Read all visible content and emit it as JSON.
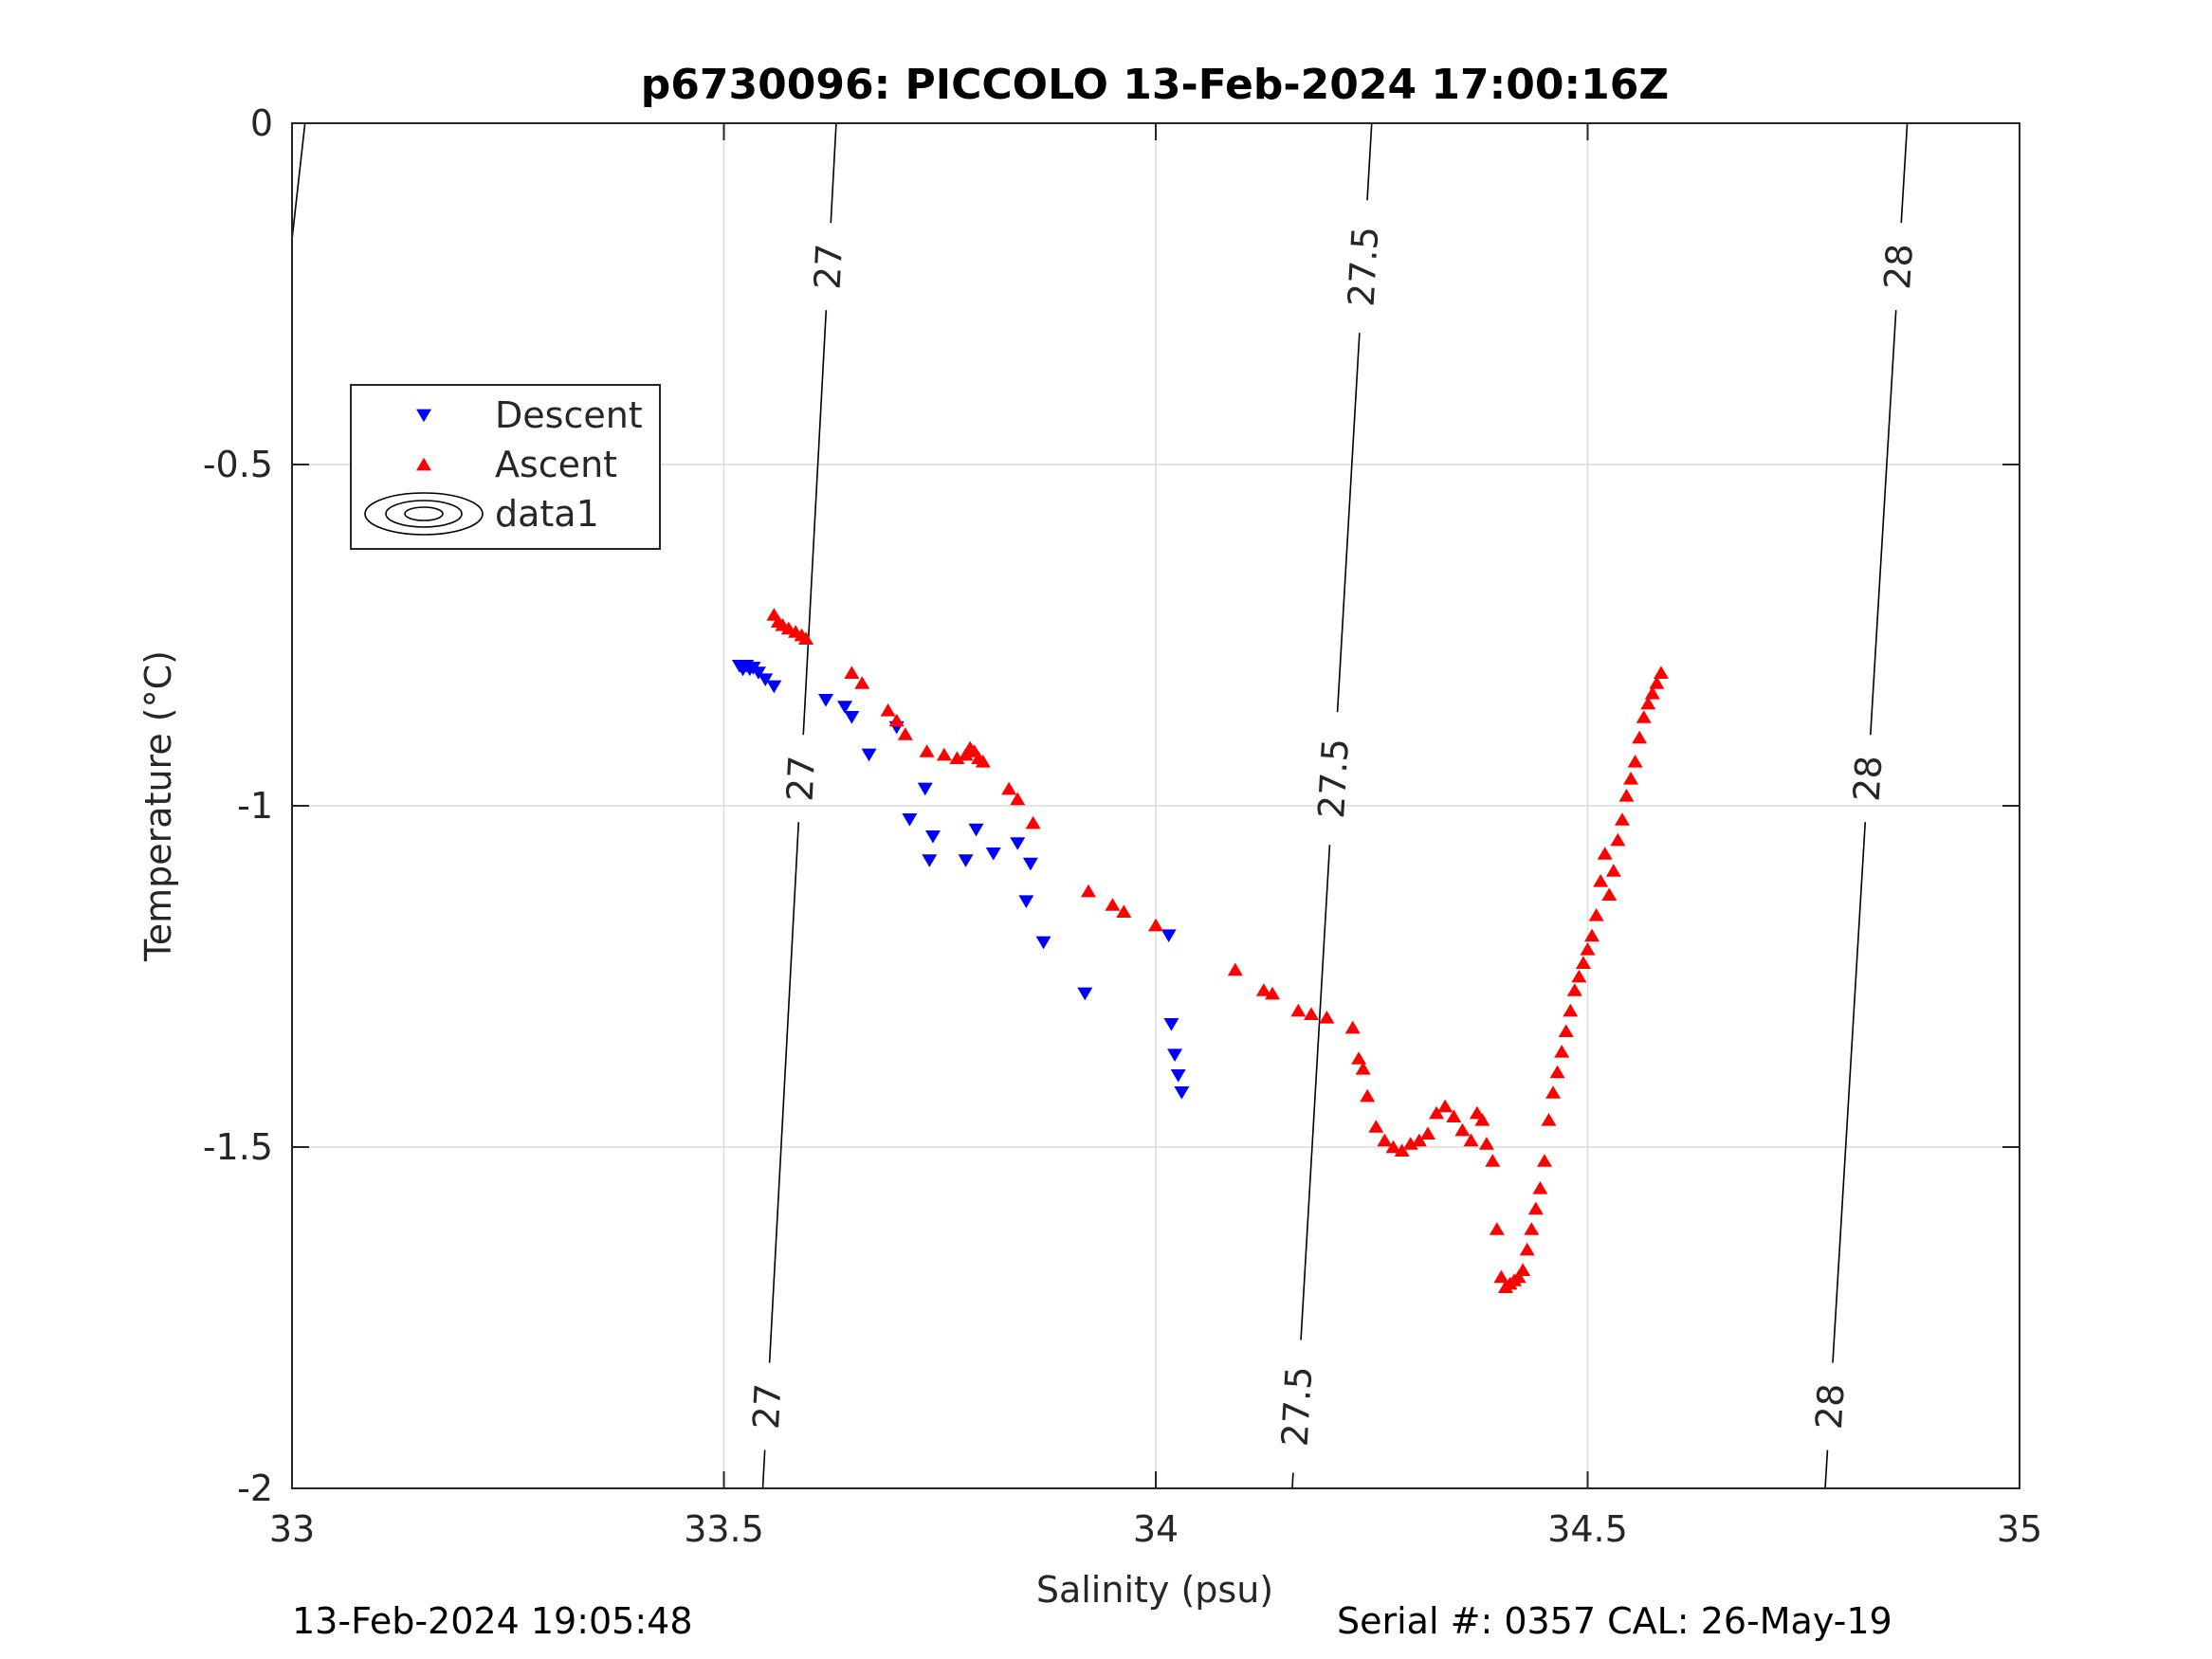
{
  "chart_data": {
    "type": "scatter",
    "title": "p6730096: PICCOLO 13-Feb-2024 17:00:16Z",
    "xlabel": "Salinity (psu)",
    "ylabel": "Temperature (°C)",
    "xlim": [
      33,
      35
    ],
    "ylim": [
      -2,
      0
    ],
    "xticks": [
      "33",
      "33.5",
      "34",
      "34.5",
      "35"
    ],
    "yticks": [
      "0",
      "-0.5",
      "-1",
      "-1.5",
      "-2"
    ],
    "grid": true,
    "legend_position": "upper-left",
    "legend": [
      {
        "label": "Descent",
        "marker": "triangle-down",
        "color": "#0000ff"
      },
      {
        "label": "Ascent",
        "marker": "triangle-up",
        "color": "#ff0000"
      },
      {
        "label": "data1",
        "marker": "contour",
        "color": "#000000"
      }
    ],
    "series": [
      {
        "name": "Descent",
        "color": "#0000ff",
        "marker": "triangle-down",
        "x": [
          33.518,
          33.522,
          33.526,
          33.53,
          33.534,
          33.54,
          33.548,
          33.558,
          33.618,
          33.64,
          33.648,
          33.668,
          33.7,
          33.733,
          33.742,
          33.738,
          33.715,
          33.78,
          33.792,
          33.812,
          33.84,
          33.855,
          33.85,
          33.87,
          33.918,
          34.015,
          34.018,
          34.022,
          34.026,
          34.03
        ],
        "y": [
          -0.795,
          -0.8,
          -0.795,
          -0.8,
          -0.798,
          -0.805,
          -0.815,
          -0.825,
          -0.845,
          -0.855,
          -0.87,
          -0.925,
          -0.885,
          -0.975,
          -1.045,
          -1.08,
          -1.02,
          -1.08,
          -1.035,
          -1.07,
          -1.055,
          -1.085,
          -1.14,
          -1.2,
          -1.275,
          -1.19,
          -1.32,
          -1.365,
          -1.395,
          -1.42
        ]
      },
      {
        "name": "Ascent",
        "color": "#ff0000",
        "marker": "triangle-up",
        "x": [
          33.558,
          33.563,
          33.568,
          33.575,
          33.583,
          33.59,
          33.595,
          33.648,
          33.66,
          33.69,
          33.7,
          33.71,
          33.735,
          33.755,
          33.77,
          33.78,
          33.785,
          33.79,
          33.795,
          33.8,
          33.83,
          33.84,
          33.858,
          33.922,
          33.95,
          33.963,
          34.0,
          34.092,
          34.125,
          34.135,
          34.165,
          34.18,
          34.198,
          34.228,
          34.235,
          34.24,
          34.245,
          34.255,
          34.265,
          34.275,
          34.285,
          34.295,
          34.305,
          34.315,
          34.325,
          34.335,
          34.345,
          34.355,
          34.365,
          34.372,
          34.378,
          34.383,
          34.39,
          34.395,
          34.4,
          34.405,
          34.41,
          34.415,
          34.42,
          34.425,
          34.43,
          34.435,
          34.44,
          34.445,
          34.45,
          34.455,
          34.46,
          34.465,
          34.47,
          34.475,
          34.48,
          34.485,
          34.49,
          34.495,
          34.5,
          34.505,
          34.51,
          34.515,
          34.52,
          34.525,
          34.53,
          34.535,
          34.54,
          34.545,
          34.55,
          34.555,
          34.56,
          34.565,
          34.57,
          34.575,
          34.58,
          34.585
        ],
        "y": [
          -0.72,
          -0.73,
          -0.735,
          -0.74,
          -0.745,
          -0.75,
          -0.755,
          -0.805,
          -0.82,
          -0.86,
          -0.875,
          -0.895,
          -0.92,
          -0.925,
          -0.93,
          -0.925,
          -0.915,
          -0.92,
          -0.93,
          -0.935,
          -0.975,
          -0.99,
          -1.025,
          -1.125,
          -1.145,
          -1.155,
          -1.175,
          -1.24,
          -1.27,
          -1.275,
          -1.3,
          -1.305,
          -1.31,
          -1.325,
          -1.37,
          -1.385,
          -1.425,
          -1.47,
          -1.49,
          -1.5,
          -1.505,
          -1.495,
          -1.49,
          -1.48,
          -1.45,
          -1.44,
          -1.455,
          -1.475,
          -1.49,
          -1.45,
          -1.46,
          -1.495,
          -1.52,
          -1.62,
          -1.69,
          -1.705,
          -1.7,
          -1.695,
          -1.69,
          -1.68,
          -1.65,
          -1.62,
          -1.59,
          -1.56,
          -1.52,
          -1.46,
          -1.42,
          -1.39,
          -1.36,
          -1.33,
          -1.3,
          -1.27,
          -1.25,
          -1.23,
          -1.21,
          -1.19,
          -1.16,
          -1.11,
          -1.07,
          -1.13,
          -1.095,
          -1.05,
          -1.02,
          -0.985,
          -0.96,
          -0.935,
          -0.9,
          -0.87,
          -0.85,
          -0.835,
          -0.82,
          -0.805
        ]
      }
    ],
    "isopycnals": [
      {
        "label": "27",
        "x_top": 33.63,
        "x_bottom": 33.545
      },
      {
        "label": "27.5",
        "x_top": 34.25,
        "x_bottom": 34.158
      },
      {
        "label": "28",
        "x_top": 34.87,
        "x_bottom": 34.775
      },
      {
        "label": "",
        "x_top": 33.015,
        "x_bottom": 33.0,
        "y_bottom": -0.17
      }
    ]
  },
  "footer": {
    "left": "13-Feb-2024 19:05:48",
    "right": "Serial #: 0357  CAL: 26-May-19"
  }
}
